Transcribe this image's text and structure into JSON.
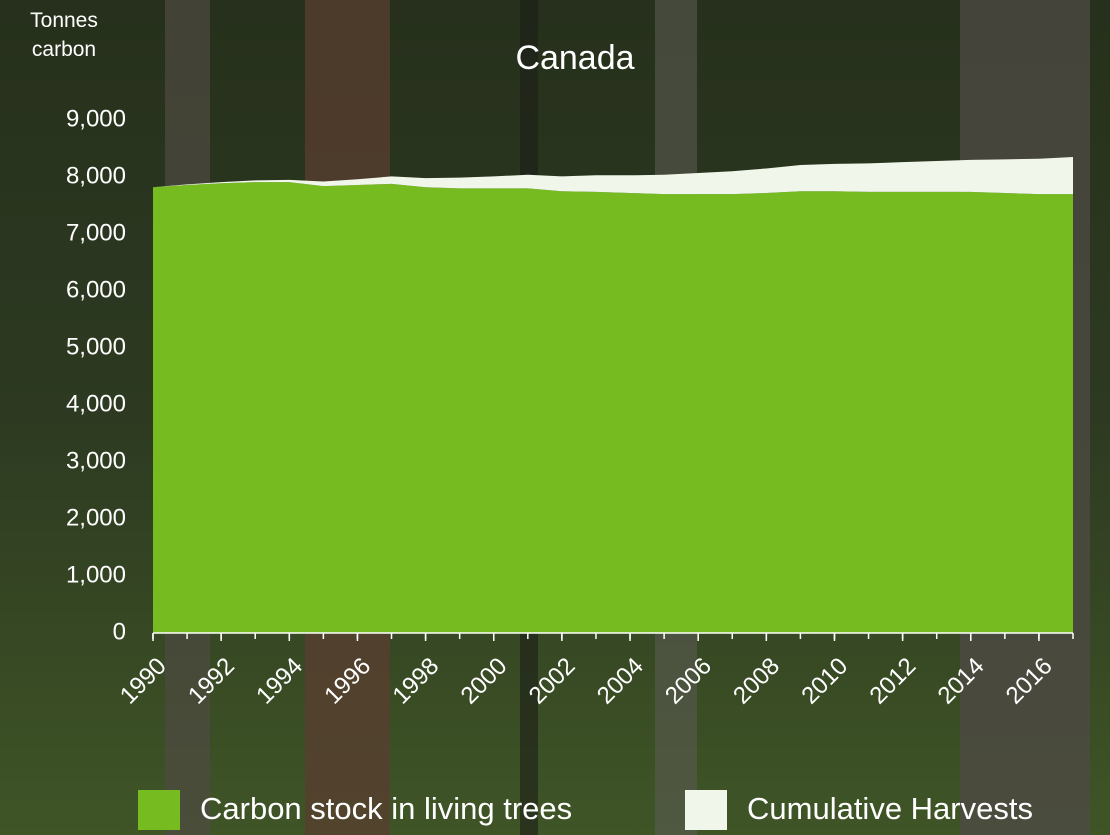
{
  "chart_data": {
    "type": "stacked-area",
    "title": "Canada",
    "y_label": "Tonnes carbon",
    "x": [
      1990,
      1991,
      1992,
      1993,
      1994,
      1995,
      1996,
      1997,
      1998,
      1999,
      2000,
      2001,
      2002,
      2003,
      2004,
      2005,
      2006,
      2007,
      2008,
      2009,
      2010,
      2011,
      2012,
      2013,
      2014,
      2015,
      2016,
      2017
    ],
    "xlim": [
      1990,
      2017
    ],
    "xticks": [
      1990,
      1992,
      1994,
      1996,
      1998,
      2000,
      2002,
      2004,
      2006,
      2008,
      2010,
      2012,
      2014,
      2016
    ],
    "ylim": [
      0,
      9000
    ],
    "yticks": [
      0,
      {
        "value": 1000,
        "label": "1,000"
      },
      {
        "value": 2000,
        "label": "2,000"
      },
      {
        "value": 3000,
        "label": "3,000"
      },
      {
        "value": 4000,
        "label": "4,000"
      },
      {
        "value": 5000,
        "label": "5,000"
      },
      {
        "value": 6000,
        "label": "6,000"
      },
      {
        "value": 7000,
        "label": "7,000"
      },
      {
        "value": 8000,
        "label": "8,000"
      },
      {
        "value": 9000,
        "label": "9,000"
      }
    ],
    "series": [
      {
        "name": "Carbon stock in living trees",
        "color": "#76bc21",
        "values": [
          7820,
          7860,
          7890,
          7910,
          7910,
          7840,
          7860,
          7880,
          7820,
          7800,
          7800,
          7800,
          7750,
          7740,
          7720,
          7700,
          7700,
          7700,
          7720,
          7750,
          7750,
          7740,
          7740,
          7740,
          7740,
          7720,
          7700,
          7700
        ]
      },
      {
        "name": "Cumulative Harvests",
        "color": "#f1f6ea",
        "values": [
          0,
          10,
          20,
          30,
          40,
          80,
          100,
          130,
          160,
          190,
          210,
          240,
          260,
          290,
          310,
          340,
          370,
          400,
          430,
          460,
          480,
          500,
          520,
          540,
          560,
          590,
          620,
          650
        ]
      }
    ]
  }
}
